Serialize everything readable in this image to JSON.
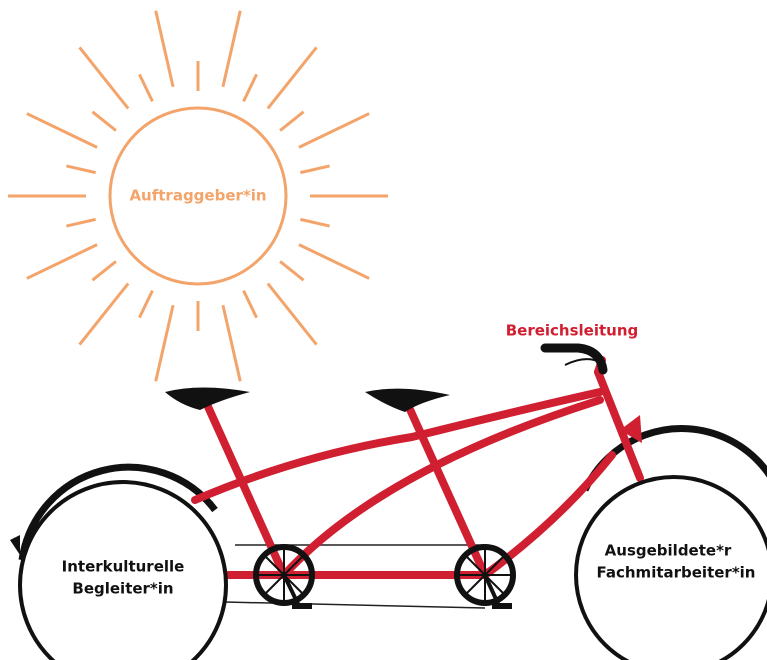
{
  "sun": {
    "label": "Auftraggeber*in"
  },
  "handlebar": {
    "label": "Bereichsleitung"
  },
  "rear_wheel": {
    "lines": [
      "Interkulturelle",
      "Begleiter*in"
    ]
  },
  "front_wheel": {
    "lines": [
      "Ausgebildete*r",
      "Fachmitarbeiter*in"
    ]
  }
}
